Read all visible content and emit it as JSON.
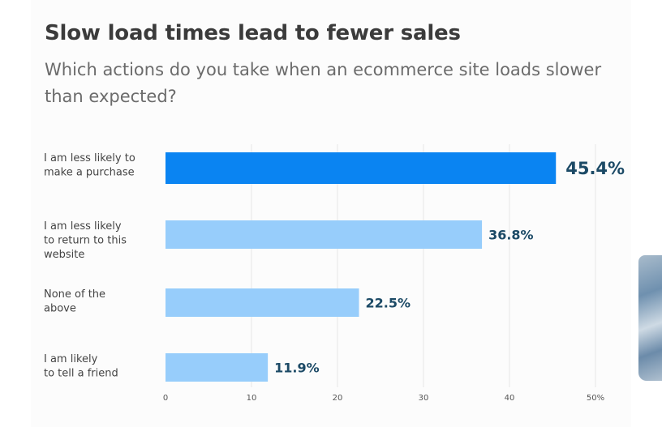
{
  "chart_data": {
    "type": "bar",
    "orientation": "horizontal",
    "title": "Slow load times lead to fewer sales",
    "subtitle": "Which actions do you take when an ecommerce site loads slower than expected?",
    "categories": [
      [
        "I am less likely to",
        "make a purchase"
      ],
      [
        "I am less likely",
        "to return to this",
        "website"
      ],
      [
        "None of the",
        "above"
      ],
      [
        "I am likely",
        "to tell a friend"
      ]
    ],
    "values": [
      45.4,
      36.8,
      22.5,
      11.9
    ],
    "value_labels": [
      "45.4%",
      "36.8%",
      "22.5%",
      "11.9%"
    ],
    "highlight_index": 0,
    "colors": {
      "highlight": "#0a84f2",
      "bar": "#97cdfb",
      "value_text": "#1c4a66",
      "grid": "#e6e6e6"
    },
    "xlim": [
      0,
      50
    ],
    "xticks": [
      "0",
      "10",
      "20",
      "30",
      "40",
      "50%"
    ],
    "grid": true
  }
}
